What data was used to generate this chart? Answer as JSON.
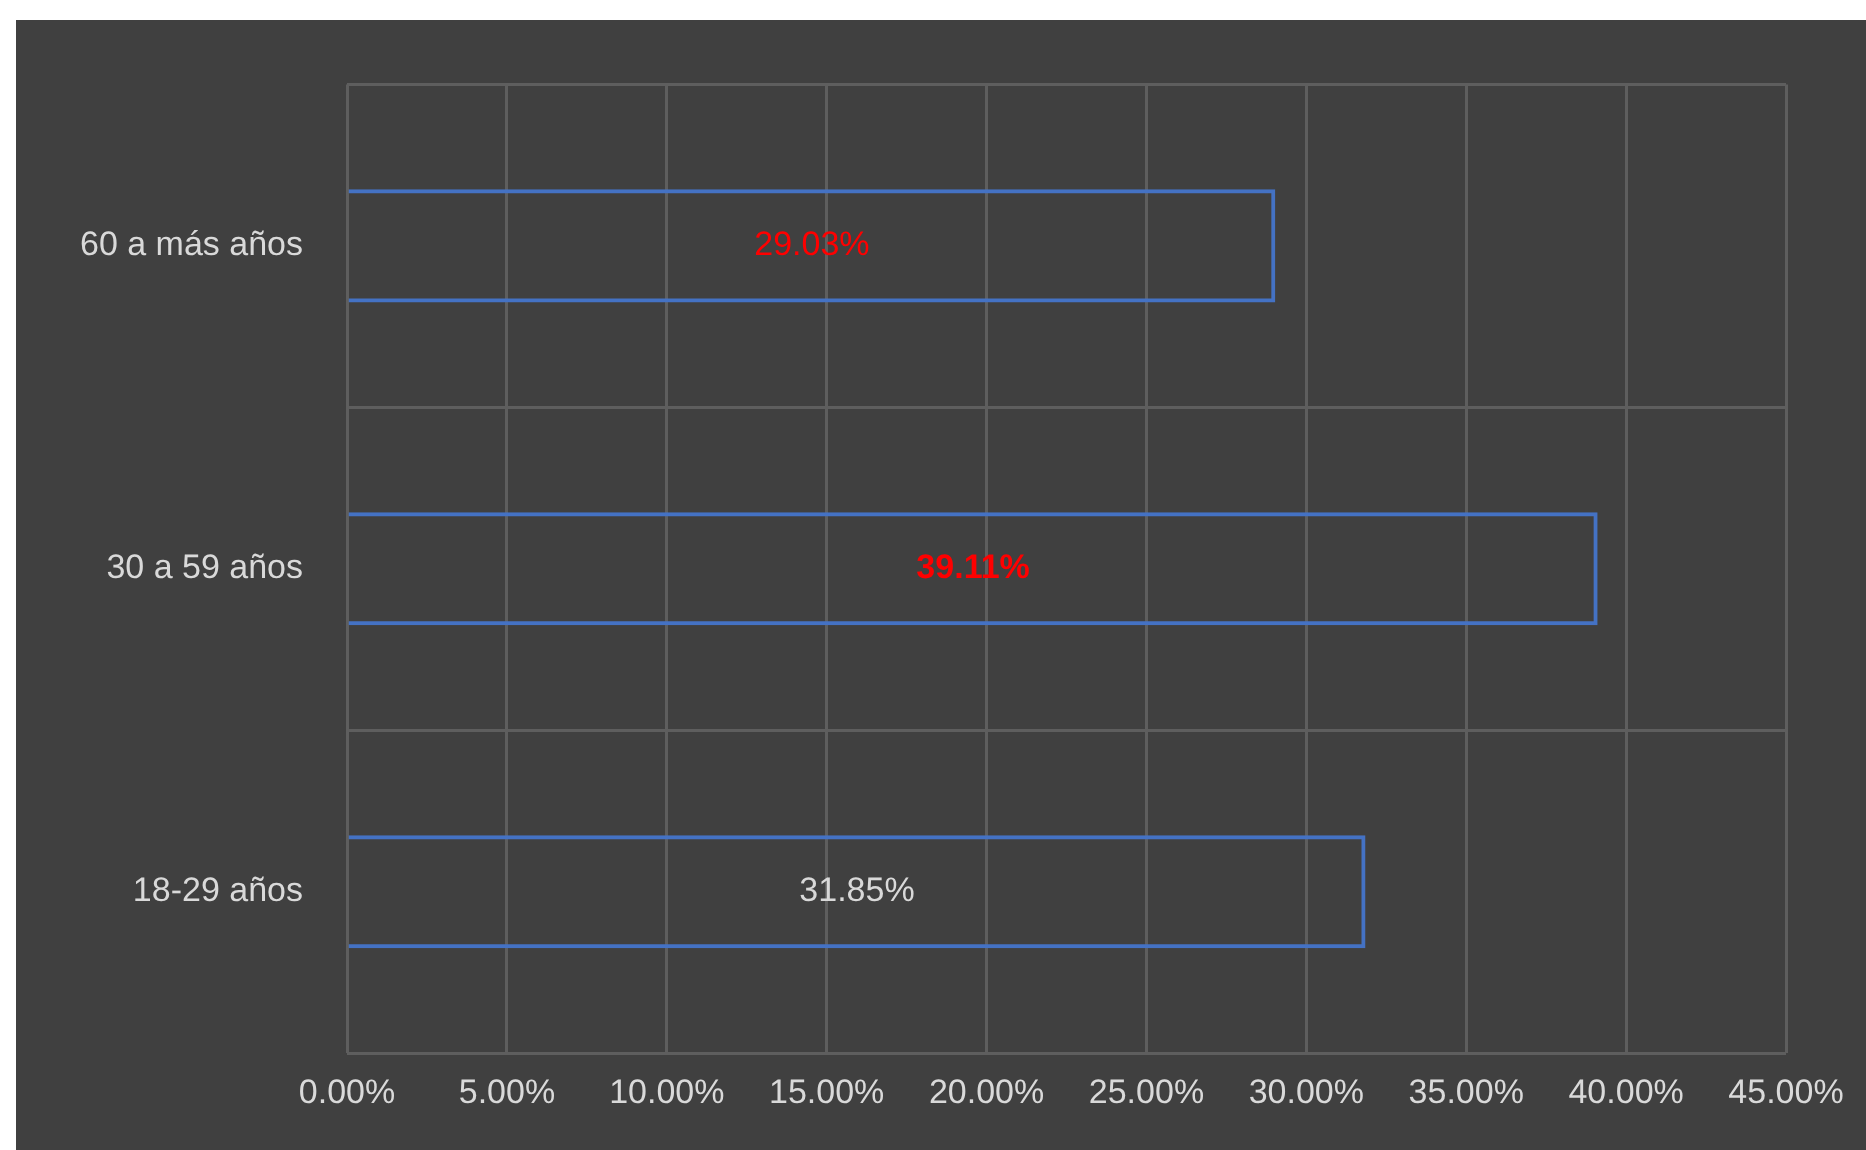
{
  "chart_data": {
    "type": "bar",
    "orientation": "horizontal",
    "categories": [
      "60 a más años",
      "30 a 59 años",
      "18-29 años"
    ],
    "values": [
      29.03,
      39.11,
      31.85
    ],
    "color": "#4472c4",
    "value_labels": [
      "29.03%",
      "39.11%",
      "31.85%"
    ],
    "xlim": [
      0,
      45
    ],
    "xticks": [
      {
        "value": 0,
        "label": "0.00%"
      },
      {
        "value": 5,
        "label": "5.00%"
      },
      {
        "value": 10,
        "label": "10.00%"
      },
      {
        "value": 15,
        "label": "15.00%"
      },
      {
        "value": 20,
        "label": "20.00%"
      },
      {
        "value": 25,
        "label": "25.00%"
      },
      {
        "value": 30,
        "label": "30.00%"
      },
      {
        "value": 35,
        "label": "35.00%"
      },
      {
        "value": 40,
        "label": "40.00%"
      },
      {
        "value": 45,
        "label": "45.00%"
      }
    ],
    "grid": true,
    "legend": false
  }
}
